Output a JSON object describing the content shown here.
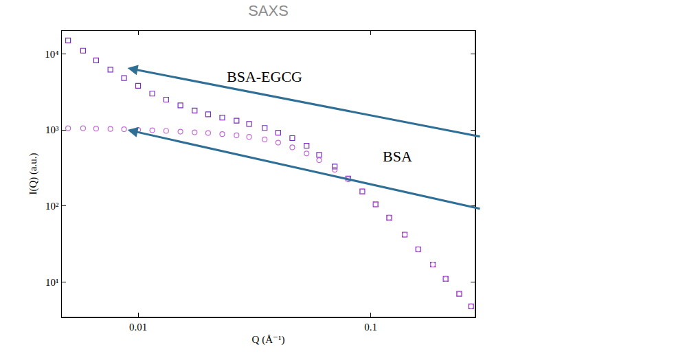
{
  "chart_data": {
    "type": "scatter",
    "title": "SAXS",
    "x_label": "Q (Å⁻¹)",
    "y_label": "I(Q) (a.u.)",
    "log": true,
    "grid": false,
    "xlim": [
      0.0047,
      0.28
    ],
    "ylim": [
      3.5,
      20000
    ],
    "xticks": [
      0.01,
      0.1
    ],
    "yticks": [
      {
        "value": 10,
        "label": "10¹"
      },
      {
        "value": 100,
        "label": "10²"
      },
      {
        "value": 1000,
        "label": "10³"
      },
      {
        "value": 10000,
        "label": "10⁴"
      }
    ],
    "series": [
      {
        "name": "BSA-EGCG",
        "color": "#7a2fc0",
        "marker": "square-open",
        "x": [
          0.005,
          0.0058,
          0.0066,
          0.0076,
          0.0087,
          0.01,
          0.0115,
          0.0132,
          0.0152,
          0.0175,
          0.02,
          0.023,
          0.0265,
          0.03,
          0.035,
          0.04,
          0.046,
          0.053,
          0.06,
          0.07,
          0.08,
          0.092,
          0.105,
          0.12,
          0.14,
          0.16,
          0.185,
          0.21,
          0.24,
          0.27
        ],
        "values": [
          15000,
          11000,
          8200,
          6200,
          4800,
          3800,
          3000,
          2500,
          2100,
          1800,
          1600,
          1450,
          1320,
          1200,
          1060,
          920,
          780,
          620,
          470,
          330,
          230,
          155,
          105,
          70,
          42,
          27,
          17,
          11,
          7,
          4.8
        ]
      },
      {
        "name": "BSA",
        "color": "#c76ad9",
        "marker": "circle-open",
        "x": [
          0.005,
          0.0058,
          0.0066,
          0.0076,
          0.0087,
          0.01,
          0.0115,
          0.0132,
          0.0152,
          0.0175,
          0.02,
          0.023,
          0.0265,
          0.03,
          0.035,
          0.04,
          0.046,
          0.053,
          0.06,
          0.07,
          0.08,
          0.092,
          0.105,
          0.12,
          0.14,
          0.16,
          0.185,
          0.21,
          0.24,
          0.27
        ],
        "values": [
          1050,
          1050,
          1040,
          1030,
          1020,
          1000,
          990,
          970,
          950,
          930,
          910,
          880,
          850,
          810,
          750,
          680,
          590,
          490,
          400,
          300,
          225,
          155,
          105,
          70,
          42,
          27,
          17,
          11,
          7,
          4.8
        ]
      }
    ],
    "annotations": [
      {
        "text": "BSA-EGCG",
        "x": 0.035,
        "y": 5000,
        "arrow_to": {
          "x": 0.009,
          "y": 6500
        }
      },
      {
        "text": "BSA",
        "x": 0.13,
        "y": 450,
        "arrow_to": {
          "x": 0.009,
          "y": 1000
        }
      }
    ]
  }
}
